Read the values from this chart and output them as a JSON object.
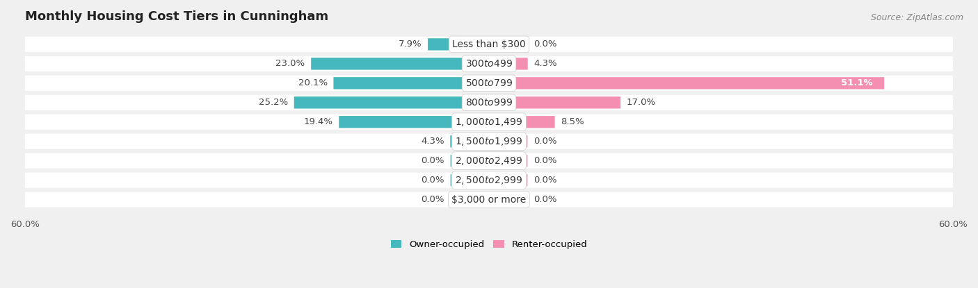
{
  "title": "Monthly Housing Cost Tiers in Cunningham",
  "source": "Source: ZipAtlas.com",
  "categories": [
    "Less than $300",
    "$300 to $499",
    "$500 to $799",
    "$800 to $999",
    "$1,000 to $1,499",
    "$1,500 to $1,999",
    "$2,000 to $2,499",
    "$2,500 to $2,999",
    "$3,000 or more"
  ],
  "owner_values": [
    7.9,
    23.0,
    20.1,
    25.2,
    19.4,
    4.3,
    0.0,
    0.0,
    0.0
  ],
  "renter_values": [
    0.0,
    4.3,
    51.1,
    17.0,
    8.5,
    0.0,
    0.0,
    0.0,
    0.0
  ],
  "owner_color": "#45b8bd",
  "owner_color_light": "#8dd4d7",
  "renter_color": "#f48fb1",
  "renter_color_dark": "#f06292",
  "bg_color": "#f0f0f0",
  "row_bg_color": "#ffffff",
  "xlim": 60.0,
  "min_stub": 5.0,
  "bar_height": 0.6,
  "title_fontsize": 13,
  "value_fontsize": 9.5,
  "source_fontsize": 9,
  "legend_fontsize": 9.5,
  "category_fontsize": 10
}
